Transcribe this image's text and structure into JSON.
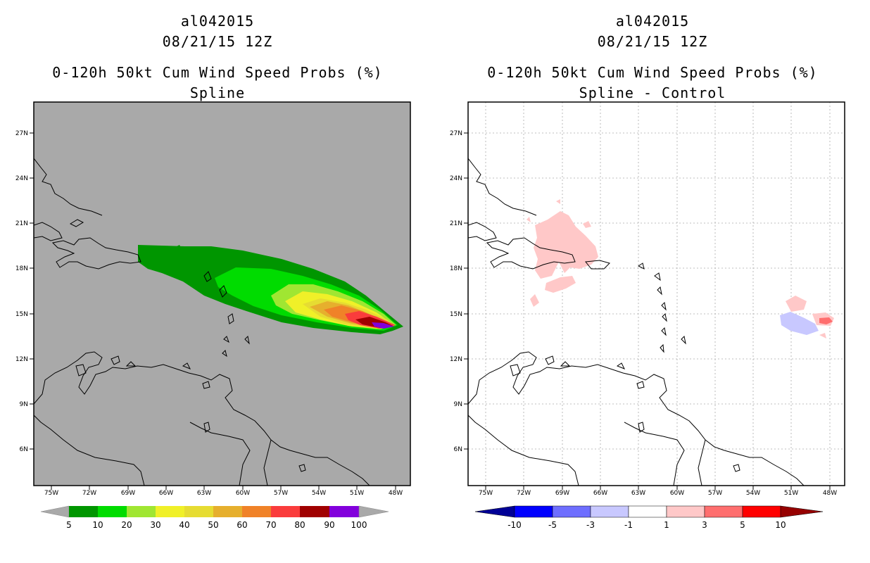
{
  "panels": [
    {
      "storm_id": "al042015",
      "datetime": "08/21/15 12Z",
      "product": "0-120h 50kt Cum Wind Speed Probs (%)",
      "subtitle": "Spline",
      "map_background": "#a9a9a9",
      "colorbar": {
        "tick_labels": [
          "5",
          "10",
          "20",
          "30",
          "40",
          "50",
          "60",
          "70",
          "80",
          "90",
          "100"
        ],
        "colors": [
          "#009600",
          "#00dc00",
          "#a0e632",
          "#f0f028",
          "#e6dc32",
          "#e6af2d",
          "#f08228",
          "#fa3c3c",
          "#a00000",
          "#8200dc"
        ],
        "end_low": "#a9a9a9",
        "end_high": "#a9a9a9"
      }
    },
    {
      "storm_id": "al042015",
      "datetime": "08/21/15 12Z",
      "product": "0-120h 50kt Cum Wind Speed Probs (%)",
      "subtitle": "Spline - Control",
      "map_background": "#ffffff",
      "colorbar": {
        "tick_labels": [
          "-10",
          "-5",
          "-3",
          "-1",
          "1",
          "3",
          "5",
          "10"
        ],
        "colors": [
          "#0000ff",
          "#6e6eff",
          "#c8c8ff",
          "#ffffff",
          "#ffc8c8",
          "#ff6e6e",
          "#ff0000"
        ],
        "end_low": "#000096",
        "end_high": "#960000"
      }
    }
  ],
  "axes": {
    "lat_labels": [
      "27N",
      "24N",
      "21N",
      "18N",
      "15N",
      "12N",
      "9N",
      "6N"
    ],
    "lon_labels": [
      "75W",
      "72W",
      "69W",
      "66W",
      "63W",
      "60W",
      "57W",
      "54W",
      "51W",
      "48W"
    ]
  }
}
